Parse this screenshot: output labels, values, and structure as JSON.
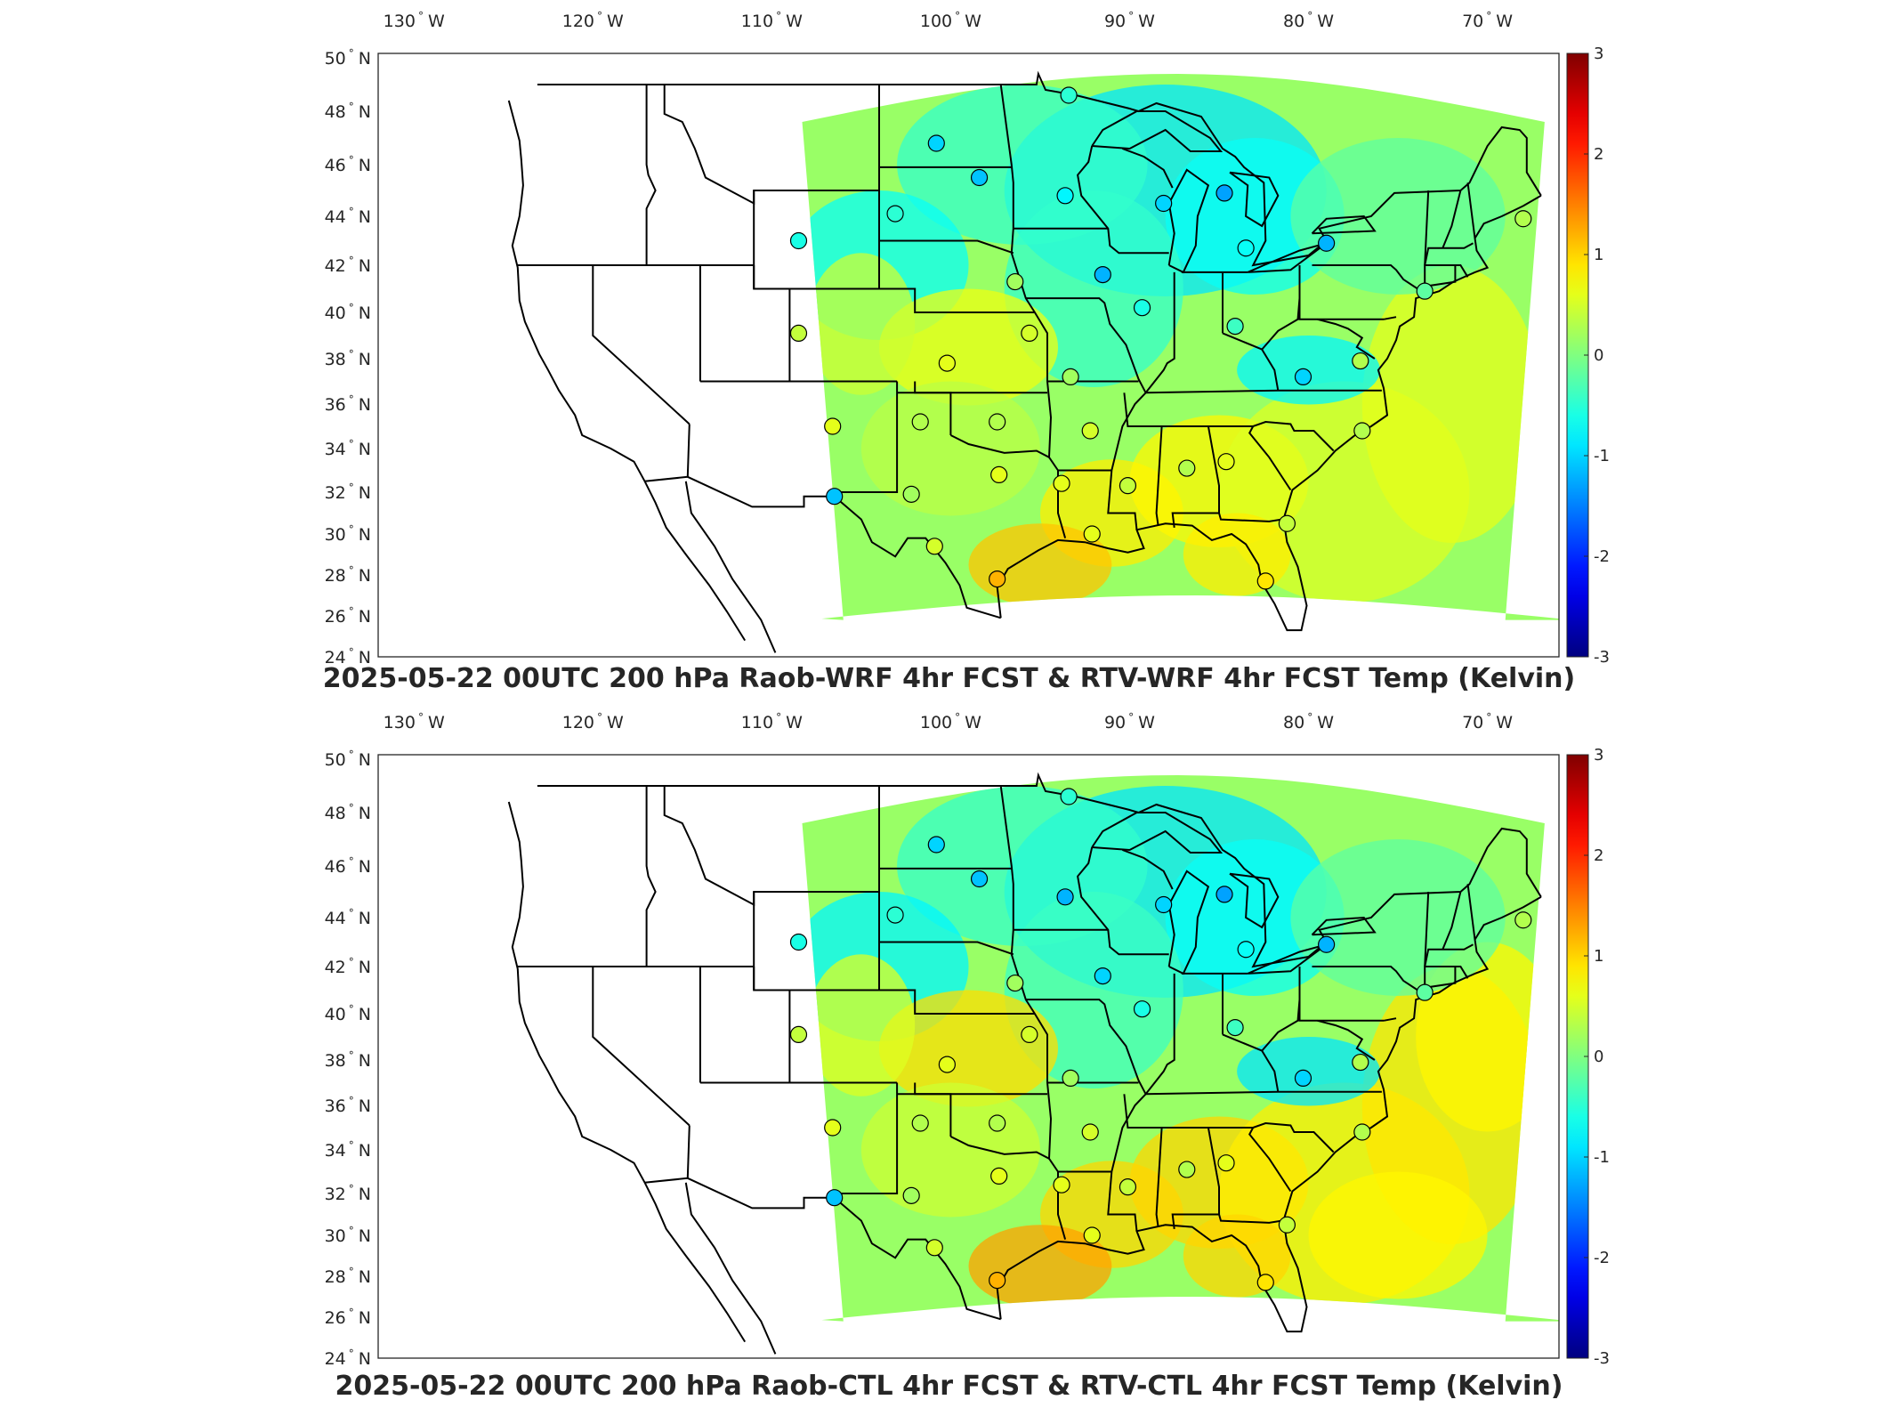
{
  "figure": {
    "panels": [
      {
        "title": "2025-05-22 00UTC 200 hPa Raob-WRF 4hr FCST & RTV-WRF 4hr FCST Temp (Kelvin)"
      },
      {
        "title": "2025-05-22 00UTC 200 hPa Raob-CTL 4hr FCST & RTV-CTL 4hr FCST Temp (Kelvin)"
      }
    ],
    "lon_ticks": [
      "130",
      "120",
      "110",
      "100",
      "90",
      "80",
      "70"
    ],
    "lon_hemisphere": "W",
    "lat_ticks": [
      "50",
      "48",
      "46",
      "44",
      "42",
      "40",
      "38",
      "36",
      "34",
      "32",
      "30",
      "28",
      "26",
      "24"
    ],
    "lat_hemisphere": "N",
    "degree_symbol": "°",
    "colorbar": {
      "ticks": [
        "3",
        "2",
        "1",
        "0",
        "-1",
        "-2",
        "-3"
      ],
      "range": [
        -3,
        3
      ],
      "colormap": "jet"
    }
  },
  "chart_data": [
    {
      "type": "map",
      "title": "2025-05-22 00UTC 200 hPa Raob-WRF 4hr FCST & RTV-WRF 4hr FCST Temp (Kelvin)",
      "lon_range": [
        -132,
        -66
      ],
      "lat_range": [
        24,
        50
      ],
      "colorbar_range": [
        -3,
        3
      ],
      "field_pattern": "mostly near 0 (green/cyan) over central US with warm anomalies (+1) in Kansas, Gulf coast and Southeast; cooler anomalies (-1) over Great Lakes and northern Plains",
      "stations": [
        {
          "lon": -93.4,
          "lat": 48.6,
          "value": -0.5
        },
        {
          "lon": -100.8,
          "lat": 46.8,
          "value": -1.0
        },
        {
          "lon": -98.4,
          "lat": 45.5,
          "value": -1.1
        },
        {
          "lon": -93.6,
          "lat": 44.8,
          "value": -0.8
        },
        {
          "lon": -88.1,
          "lat": 44.5,
          "value": -1.0
        },
        {
          "lon": -84.7,
          "lat": 44.9,
          "value": -1.3
        },
        {
          "lon": -103.1,
          "lat": 44.1,
          "value": -0.5
        },
        {
          "lon": -108.5,
          "lat": 43.0,
          "value": -0.6
        },
        {
          "lon": -83.5,
          "lat": 42.7,
          "value": -0.7
        },
        {
          "lon": -79.0,
          "lat": 42.9,
          "value": -1.2
        },
        {
          "lon": -68.0,
          "lat": 43.9,
          "value": 0.3
        },
        {
          "lon": -91.5,
          "lat": 41.6,
          "value": -1.2
        },
        {
          "lon": -96.4,
          "lat": 41.3,
          "value": 0.2
        },
        {
          "lon": -73.5,
          "lat": 40.9,
          "value": -0.2
        },
        {
          "lon": -89.3,
          "lat": 40.2,
          "value": -0.6
        },
        {
          "lon": -108.5,
          "lat": 39.1,
          "value": 0.4
        },
        {
          "lon": -95.6,
          "lat": 39.1,
          "value": 0.5
        },
        {
          "lon": -84.1,
          "lat": 39.4,
          "value": -0.4
        },
        {
          "lon": -100.2,
          "lat": 37.8,
          "value": 0.6
        },
        {
          "lon": -77.1,
          "lat": 37.9,
          "value": 0.3
        },
        {
          "lon": -80.3,
          "lat": 37.2,
          "value": -1.0
        },
        {
          "lon": -93.3,
          "lat": 37.2,
          "value": 0.2
        },
        {
          "lon": -106.6,
          "lat": 35.0,
          "value": 0.6
        },
        {
          "lon": -101.7,
          "lat": 35.2,
          "value": 0.3
        },
        {
          "lon": -97.4,
          "lat": 35.2,
          "value": 0.3
        },
        {
          "lon": -92.2,
          "lat": 34.8,
          "value": 0.5
        },
        {
          "lon": -77.0,
          "lat": 34.8,
          "value": 0.3
        },
        {
          "lon": -97.3,
          "lat": 32.8,
          "value": 0.6
        },
        {
          "lon": -86.8,
          "lat": 33.1,
          "value": 0.3
        },
        {
          "lon": -84.6,
          "lat": 33.4,
          "value": 0.6
        },
        {
          "lon": -93.8,
          "lat": 32.4,
          "value": 0.6
        },
        {
          "lon": -90.1,
          "lat": 32.3,
          "value": 0.4
        },
        {
          "lon": -106.5,
          "lat": 31.8,
          "value": -1.1
        },
        {
          "lon": -102.2,
          "lat": 31.9,
          "value": 0.2
        },
        {
          "lon": -81.2,
          "lat": 30.5,
          "value": 0.4
        },
        {
          "lon": -92.1,
          "lat": 30.0,
          "value": 0.6
        },
        {
          "lon": -100.9,
          "lat": 29.4,
          "value": 0.5
        },
        {
          "lon": -97.4,
          "lat": 27.8,
          "value": 1.2
        },
        {
          "lon": -82.4,
          "lat": 27.7,
          "value": 0.9
        }
      ]
    },
    {
      "type": "map",
      "title": "2025-05-22 00UTC 200 hPa Raob-CTL 4hr FCST & RTV-CTL 4hr FCST Temp (Kelvin)",
      "lon_range": [
        -132,
        -66
      ],
      "lat_range": [
        24,
        50
      ],
      "colorbar_range": [
        -3,
        3
      ],
      "field_pattern": "similar to upper panel with slightly stronger warm anomalies over Kansas, Gulf coast, Southeast and offshore Atlantic",
      "stations": [
        {
          "lon": -93.4,
          "lat": 48.6,
          "value": -0.5
        },
        {
          "lon": -100.8,
          "lat": 46.8,
          "value": -1.0
        },
        {
          "lon": -98.4,
          "lat": 45.5,
          "value": -1.1
        },
        {
          "lon": -93.6,
          "lat": 44.8,
          "value": -1.2
        },
        {
          "lon": -88.1,
          "lat": 44.5,
          "value": -1.0
        },
        {
          "lon": -84.7,
          "lat": 44.9,
          "value": -1.3
        },
        {
          "lon": -103.1,
          "lat": 44.1,
          "value": -0.5
        },
        {
          "lon": -108.5,
          "lat": 43.0,
          "value": -0.6
        },
        {
          "lon": -83.5,
          "lat": 42.7,
          "value": -0.7
        },
        {
          "lon": -79.0,
          "lat": 42.9,
          "value": -1.2
        },
        {
          "lon": -68.0,
          "lat": 43.9,
          "value": 0.3
        },
        {
          "lon": -91.5,
          "lat": 41.6,
          "value": -1.0
        },
        {
          "lon": -96.4,
          "lat": 41.3,
          "value": 0.2
        },
        {
          "lon": -73.5,
          "lat": 40.9,
          "value": -0.2
        },
        {
          "lon": -89.3,
          "lat": 40.2,
          "value": -0.6
        },
        {
          "lon": -108.5,
          "lat": 39.1,
          "value": 0.4
        },
        {
          "lon": -95.6,
          "lat": 39.1,
          "value": 0.5
        },
        {
          "lon": -84.1,
          "lat": 39.4,
          "value": -0.4
        },
        {
          "lon": -100.2,
          "lat": 37.8,
          "value": 0.6
        },
        {
          "lon": -77.1,
          "lat": 37.9,
          "value": 0.3
        },
        {
          "lon": -80.3,
          "lat": 37.2,
          "value": -1.0
        },
        {
          "lon": -93.3,
          "lat": 37.2,
          "value": 0.2
        },
        {
          "lon": -106.6,
          "lat": 35.0,
          "value": 0.6
        },
        {
          "lon": -101.7,
          "lat": 35.2,
          "value": 0.3
        },
        {
          "lon": -97.4,
          "lat": 35.2,
          "value": 0.3
        },
        {
          "lon": -92.2,
          "lat": 34.8,
          "value": 0.5
        },
        {
          "lon": -77.0,
          "lat": 34.8,
          "value": 0.3
        },
        {
          "lon": -97.3,
          "lat": 32.8,
          "value": 0.6
        },
        {
          "lon": -86.8,
          "lat": 33.1,
          "value": 0.3
        },
        {
          "lon": -84.6,
          "lat": 33.4,
          "value": 0.6
        },
        {
          "lon": -93.8,
          "lat": 32.4,
          "value": 0.6
        },
        {
          "lon": -90.1,
          "lat": 32.3,
          "value": 0.4
        },
        {
          "lon": -106.5,
          "lat": 31.8,
          "value": -1.1
        },
        {
          "lon": -102.2,
          "lat": 31.9,
          "value": 0.2
        },
        {
          "lon": -81.2,
          "lat": 30.5,
          "value": 0.4
        },
        {
          "lon": -92.1,
          "lat": 30.0,
          "value": 0.6
        },
        {
          "lon": -100.9,
          "lat": 29.4,
          "value": 0.5
        },
        {
          "lon": -97.4,
          "lat": 27.8,
          "value": 1.2
        },
        {
          "lon": -82.4,
          "lat": 27.7,
          "value": 0.9
        }
      ]
    }
  ]
}
